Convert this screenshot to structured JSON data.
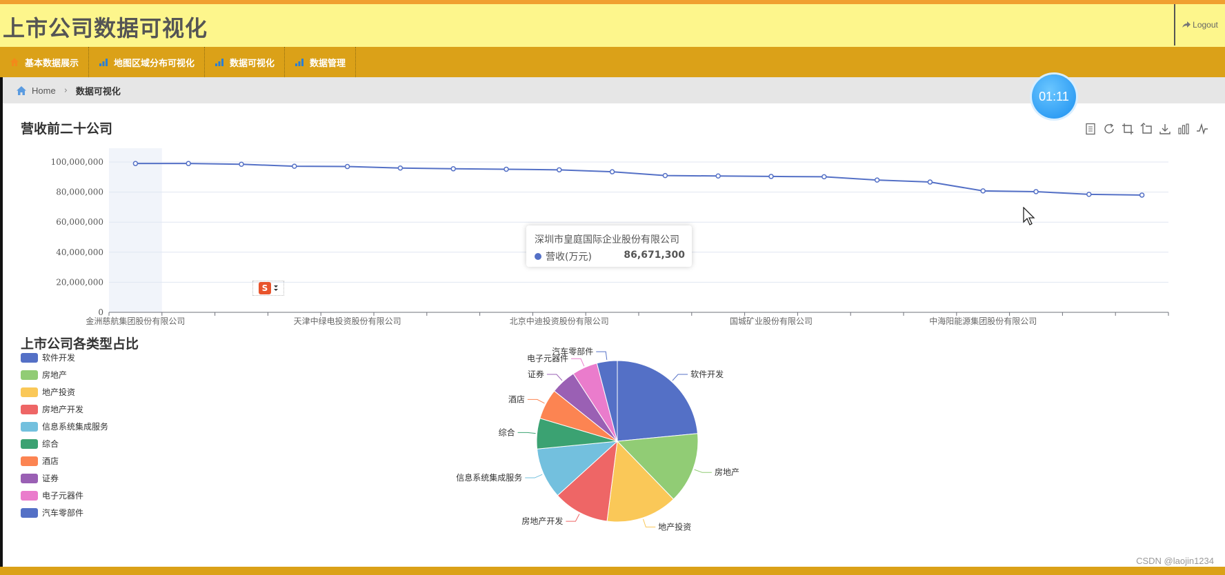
{
  "header": {
    "title": "上市公司数据可视化",
    "logout_label": "Logout"
  },
  "nav": {
    "items": [
      {
        "label": "基本数据展示",
        "icon": "home-icon"
      },
      {
        "label": "地图区域分布可视化",
        "icon": "bar-chart-icon"
      },
      {
        "label": "数据可视化",
        "icon": "bar-chart-icon"
      },
      {
        "label": "数据管理",
        "icon": "bar-chart-icon"
      }
    ]
  },
  "breadcrumb": {
    "home": "Home",
    "current": "数据可视化"
  },
  "timer": {
    "value": "01:11"
  },
  "line_section": {
    "title": "营收前二十公司"
  },
  "pie_section": {
    "title": "上市公司各类型占比"
  },
  "tooltip": {
    "company": "深圳市皇庭国际企业股份有限公司",
    "series_name": "营收(万元)",
    "value": "86,671,300"
  },
  "watermark": "CSDN @laojin1234",
  "colors": {
    "line": "#5470c6",
    "accent": "#dba118",
    "header_bg": "#fdf68c"
  },
  "chart_data": [
    {
      "type": "line",
      "title": "营收前二十公司",
      "series": [
        {
          "name": "营收(万元)",
          "values": [
            99000000,
            99000000,
            98500000,
            97200000,
            97000000,
            96000000,
            95500000,
            95200000,
            94800000,
            93500000,
            91000000,
            90700000,
            90400000,
            90200000,
            88000000,
            86671300,
            80800000,
            80300000,
            78500000,
            78000000
          ]
        }
      ],
      "visible_x_labels": [
        {
          "index": 0,
          "label": "金洲慈航集团股份有限公司"
        },
        {
          "index": 4,
          "label": "天津中绿电投资股份有限公司"
        },
        {
          "index": 8,
          "label": "北京中迪投资股份有限公司"
        },
        {
          "index": 12,
          "label": "国城矿业股份有限公司"
        },
        {
          "index": 16,
          "label": "中海阳能源集团股份有限公司"
        }
      ],
      "yticks": [
        "0",
        "20,000,000",
        "40,000,000",
        "60,000,000",
        "80,000,000",
        "100,000,000"
      ],
      "ylim": [
        0,
        100000000
      ]
    },
    {
      "type": "pie",
      "title": "上市公司各类型占比",
      "labels": [
        "软件开发",
        "房地产",
        "地产投资",
        "房地产开发",
        "信息系统集成服务",
        "综合",
        "酒店",
        "证券",
        "电子元器件",
        "汽车零部件"
      ],
      "values": [
        23,
        14,
        14,
        11,
        10,
        6,
        6,
        5,
        5,
        4
      ],
      "colors": [
        "#5470c6",
        "#91cc75",
        "#fac858",
        "#ee6666",
        "#73c0de",
        "#3ba272",
        "#fc8452",
        "#9a60b4",
        "#ea7ccc",
        "#5470c6"
      ]
    }
  ]
}
